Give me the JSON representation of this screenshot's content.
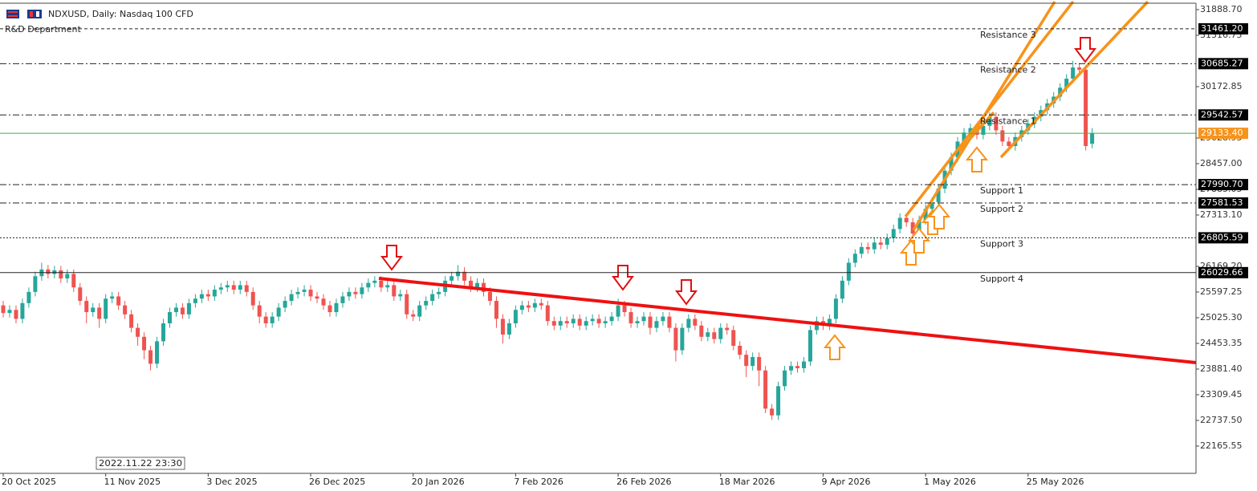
{
  "chart_data": {
    "type": "candlestick",
    "title": "NDXUSD, Daily:  Nasdaq 100 CFD",
    "subtitle": "R&D Department",
    "timestamp": "2022.11.22 23:30",
    "up_color": "#26a69a",
    "down_color": "#ef5350",
    "ylim": [
      21558,
      32103
    ],
    "yticks": [
      {
        "value": 31888.7,
        "label": "31888.70"
      },
      {
        "value": 31316.75,
        "label": "31316.75"
      },
      {
        "value": 30172.85,
        "label": "30172.85"
      },
      {
        "value": 29028.95,
        "label": "29028.95"
      },
      {
        "value": 28457.0,
        "label": "28457.00"
      },
      {
        "value": 27885.05,
        "label": "27885.05"
      },
      {
        "value": 27313.1,
        "label": "27313.10"
      },
      {
        "value": 26169.2,
        "label": "26169.20"
      },
      {
        "value": 25597.25,
        "label": "25597.25"
      },
      {
        "value": 25025.3,
        "label": "25025.30"
      },
      {
        "value": 24453.35,
        "label": "24453.35"
      },
      {
        "value": 23881.4,
        "label": "23881.40"
      },
      {
        "value": 23309.45,
        "label": "23309.45"
      },
      {
        "value": 22737.5,
        "label": "22737.50"
      },
      {
        "value": 22165.55,
        "label": "22165.55"
      }
    ],
    "level_box_color": "#000000",
    "levels": [
      {
        "name": "Resistance 3",
        "value": 31461.2,
        "label": "31461.20",
        "style": "dashed"
      },
      {
        "name": "Resistance 2",
        "value": 30685.27,
        "label": "30685.27",
        "style": "dashdot"
      },
      {
        "name": "Resistance 1",
        "value": 29542.57,
        "label": "29542.57",
        "style": "dashdot"
      },
      {
        "name": "Support 1",
        "value": 27990.7,
        "label": "27990.70",
        "style": "dashdot"
      },
      {
        "name": "Support 2",
        "value": 27581.53,
        "label": "27581.53",
        "style": "dashdot"
      },
      {
        "name": "Support 3",
        "value": 26805.59,
        "label": "26805.59",
        "style": "dotted"
      },
      {
        "name": "Support 4",
        "value": 26029.66,
        "label": "26029.66",
        "style": "solid"
      }
    ],
    "last_price": {
      "value": 29133.4,
      "label": "29133.40",
      "color": "#3cb043",
      "label_color": "#f7931a"
    },
    "categories": [
      "20 Oct 2025",
      null,
      null,
      null,
      null,
      null,
      null,
      null,
      null,
      null,
      null,
      null,
      null,
      null,
      null,
      null,
      "11 Nov 2025",
      null,
      null,
      null,
      null,
      null,
      null,
      null,
      null,
      null,
      null,
      null,
      null,
      null,
      null,
      null,
      "3 Dec 2025",
      null,
      null,
      null,
      null,
      null,
      null,
      null,
      null,
      null,
      null,
      null,
      null,
      null,
      null,
      null,
      "26 Dec 2025",
      null,
      null,
      null,
      null,
      null,
      null,
      null,
      null,
      null,
      null,
      null,
      null,
      null,
      null,
      null,
      "20 Jan 2026",
      null,
      null,
      null,
      null,
      null,
      null,
      null,
      null,
      null,
      null,
      null,
      null,
      null,
      null,
      null,
      "7 Feb 2026",
      null,
      null,
      null,
      null,
      null,
      null,
      null,
      null,
      null,
      null,
      null,
      null,
      null,
      null,
      null,
      "26 Feb 2026",
      null,
      null,
      null,
      null,
      null,
      null,
      null,
      null,
      null,
      null,
      null,
      null,
      null,
      null,
      null,
      "18 Mar 2026",
      null,
      null,
      null,
      null,
      null,
      null,
      null,
      null,
      null,
      null,
      null,
      null,
      null,
      null,
      null,
      "9 Apr 2026",
      null,
      null,
      null,
      null,
      null,
      null,
      null,
      null,
      null,
      null,
      null,
      null,
      null,
      null,
      null,
      "1 May 2026",
      null,
      null,
      null,
      null,
      null,
      null,
      null,
      null,
      null,
      null,
      null,
      null,
      null,
      null,
      null,
      "25 May 2026",
      null,
      null,
      null,
      null,
      null,
      null,
      null,
      null,
      null,
      null
    ],
    "open": [
      25300,
      25130,
      25200,
      25000,
      25350,
      25600,
      25950,
      26100,
      26000,
      26080,
      25900,
      26000,
      25700,
      25400,
      25150,
      25250,
      25000,
      25450,
      25500,
      25300,
      25100,
      24800,
      24600,
      24300,
      24000,
      24500,
      24900,
      25150,
      25250,
      25100,
      25350,
      25450,
      25550,
      25500,
      25650,
      25700,
      25750,
      25650,
      25750,
      25600,
      25300,
      25050,
      24900,
      25050,
      25250,
      25400,
      25550,
      25600,
      25650,
      25500,
      25450,
      25300,
      25150,
      25350,
      25500,
      25600,
      25550,
      25700,
      25800,
      25850,
      25700,
      25750,
      25500,
      25550,
      25100,
      25050,
      25300,
      25400,
      25550,
      25600,
      25850,
      25950,
      26050,
      25850,
      25700,
      25800,
      25600,
      25400,
      25000,
      24650,
      24900,
      25200,
      25300,
      25250,
      25350,
      25300,
      24950,
      24850,
      24950,
      24900,
      25000,
      24850,
      24950,
      25000,
      24900,
      24950,
      25050,
      25300,
      25150,
      24900,
      24950,
      25050,
      24800,
      24950,
      25050,
      24800,
      24300,
      24800,
      25000,
      24850,
      24600,
      24700,
      24550,
      24800,
      24750,
      24400,
      24200,
      23950,
      24150,
      23850,
      23000,
      22850,
      23500,
      23850,
      23950,
      23900,
      24050,
      24750,
      24950,
      24850,
      25000,
      25450,
      25850,
      26250,
      26450,
      26600,
      26550,
      26700,
      26650,
      26800,
      27000,
      27250,
      27150,
      26900,
      27200,
      27450,
      27600,
      27900,
      28300,
      28600,
      28950,
      29150,
      29250,
      29100,
      29300,
      29500,
      29200,
      28950,
      28850,
      29050,
      29200,
      29350,
      29500,
      29650,
      29800,
      29950,
      30150,
      30350,
      30600,
      30550,
      28900
    ],
    "high": [
      25400,
      25300,
      25300,
      25450,
      25700,
      26050,
      26250,
      26200,
      26180,
      26180,
      26100,
      26100,
      25800,
      25500,
      25350,
      25350,
      25550,
      25600,
      25600,
      25400,
      25200,
      24900,
      24700,
      24400,
      24600,
      25000,
      25250,
      25350,
      25350,
      25450,
      25550,
      25650,
      25650,
      25750,
      25800,
      25850,
      25850,
      25850,
      25850,
      25700,
      25400,
      25150,
      25150,
      25350,
      25500,
      25650,
      25700,
      25750,
      25750,
      25600,
      25550,
      25400,
      25450,
      25600,
      25700,
      25700,
      25800,
      25900,
      25950,
      25950,
      25850,
      25850,
      25650,
      25650,
      25200,
      25400,
      25500,
      25650,
      25700,
      25950,
      26050,
      26200,
      26150,
      25950,
      25900,
      25900,
      25700,
      25500,
      25100,
      25000,
      25300,
      25400,
      25400,
      25450,
      25450,
      25400,
      25050,
      25050,
      25050,
      25100,
      25100,
      25050,
      25100,
      25100,
      25050,
      25150,
      25450,
      25400,
      25250,
      25050,
      25150,
      25150,
      25050,
      25150,
      25150,
      24900,
      24900,
      25100,
      25100,
      24950,
      24800,
      24800,
      24900,
      24900,
      24850,
      24500,
      24300,
      24250,
      24250,
      23950,
      23100,
      23600,
      23950,
      24050,
      24050,
      24150,
      24850,
      25050,
      25050,
      25100,
      25550,
      25950,
      26350,
      26550,
      26700,
      26700,
      26800,
      26800,
      26900,
      27100,
      27350,
      27350,
      27250,
      27300,
      27550,
      27700,
      28000,
      28400,
      28700,
      29050,
      29250,
      29350,
      29350,
      29400,
      29600,
      29600,
      29300,
      29050,
      29150,
      29300,
      29450,
      29600,
      29750,
      29900,
      30050,
      30250,
      30450,
      30750,
      30700,
      30650,
      29250
    ],
    "low": [
      25030,
      25030,
      24900,
      24900,
      25250,
      25500,
      25850,
      25900,
      25900,
      25800,
      25800,
      25600,
      25300,
      24900,
      25050,
      24800,
      24900,
      25350,
      25200,
      25000,
      24700,
      24400,
      24100,
      23850,
      23900,
      24400,
      24800,
      25050,
      25000,
      25000,
      25250,
      25350,
      25400,
      25400,
      25550,
      25600,
      25550,
      25550,
      25500,
      25200,
      24900,
      24800,
      24800,
      24950,
      25150,
      25300,
      25450,
      25500,
      25400,
      25350,
      25200,
      25050,
      25050,
      25250,
      25400,
      25450,
      25450,
      25600,
      25700,
      25600,
      25600,
      25400,
      25400,
      25000,
      24950,
      24950,
      25200,
      25300,
      25450,
      25500,
      25750,
      25850,
      25750,
      25600,
      25600,
      25500,
      25300,
      24800,
      24450,
      24550,
      24800,
      25100,
      25150,
      25150,
      25200,
      24850,
      24750,
      24750,
      24800,
      24800,
      24750,
      24750,
      24850,
      24800,
      24800,
      24850,
      24950,
      25050,
      24800,
      24800,
      24850,
      24650,
      24700,
      24850,
      24700,
      24050,
      24200,
      24700,
      24750,
      24500,
      24500,
      24450,
      24450,
      24650,
      24300,
      24100,
      23700,
      23850,
      23500,
      22900,
      22750,
      22750,
      23400,
      23750,
      23800,
      23800,
      23950,
      24650,
      24750,
      24750,
      24900,
      25350,
      25750,
      26150,
      26350,
      26450,
      26450,
      26550,
      26550,
      26700,
      26900,
      27050,
      26800,
      26800,
      27100,
      27350,
      27500,
      27800,
      28200,
      28500,
      28850,
      29050,
      29000,
      29000,
      29200,
      29100,
      28850,
      28750,
      28750,
      28950,
      29100,
      29250,
      29400,
      29550,
      29700,
      29850,
      30050,
      30250,
      30450,
      28750,
      28800
    ],
    "close": [
      25130,
      25200,
      25000,
      25350,
      25600,
      25950,
      26100,
      26000,
      26080,
      25900,
      26000,
      25700,
      25400,
      25150,
      25250,
      25000,
      25450,
      25500,
      25300,
      25100,
      24800,
      24600,
      24300,
      24000,
      24500,
      24900,
      25150,
      25250,
      25100,
      25350,
      25450,
      25550,
      25500,
      25650,
      25700,
      25750,
      25650,
      25750,
      25600,
      25300,
      25050,
      24900,
      25050,
      25250,
      25400,
      25550,
      25600,
      25650,
      25500,
      25450,
      25300,
      25150,
      25350,
      25500,
      25600,
      25550,
      25700,
      25800,
      25850,
      25700,
      25750,
      25500,
      25550,
      25100,
      25050,
      25300,
      25400,
      25550,
      25600,
      25850,
      25950,
      26050,
      25850,
      25700,
      25800,
      25600,
      25400,
      25000,
      24650,
      24900,
      25200,
      25300,
      25250,
      25350,
      25300,
      24950,
      24850,
      24950,
      24900,
      25000,
      24850,
      24950,
      25000,
      24900,
      24950,
      25050,
      25300,
      25150,
      24900,
      24950,
      25050,
      24800,
      24950,
      25050,
      24800,
      24300,
      24800,
      25000,
      24850,
      24600,
      24700,
      24550,
      24800,
      24750,
      24400,
      24200,
      23950,
      24150,
      23850,
      23000,
      22850,
      23500,
      23850,
      23950,
      23900,
      24050,
      24750,
      24950,
      24850,
      25000,
      25450,
      25850,
      26250,
      26450,
      26600,
      26550,
      26700,
      26650,
      26800,
      27000,
      27250,
      27150,
      26900,
      27200,
      27450,
      27600,
      27900,
      28300,
      28600,
      28950,
      29150,
      29250,
      29100,
      29300,
      29500,
      29200,
      28950,
      28850,
      29050,
      29200,
      29350,
      29500,
      29650,
      29800,
      29950,
      30150,
      30350,
      30600,
      30550,
      28850,
      29133
    ]
  }
}
